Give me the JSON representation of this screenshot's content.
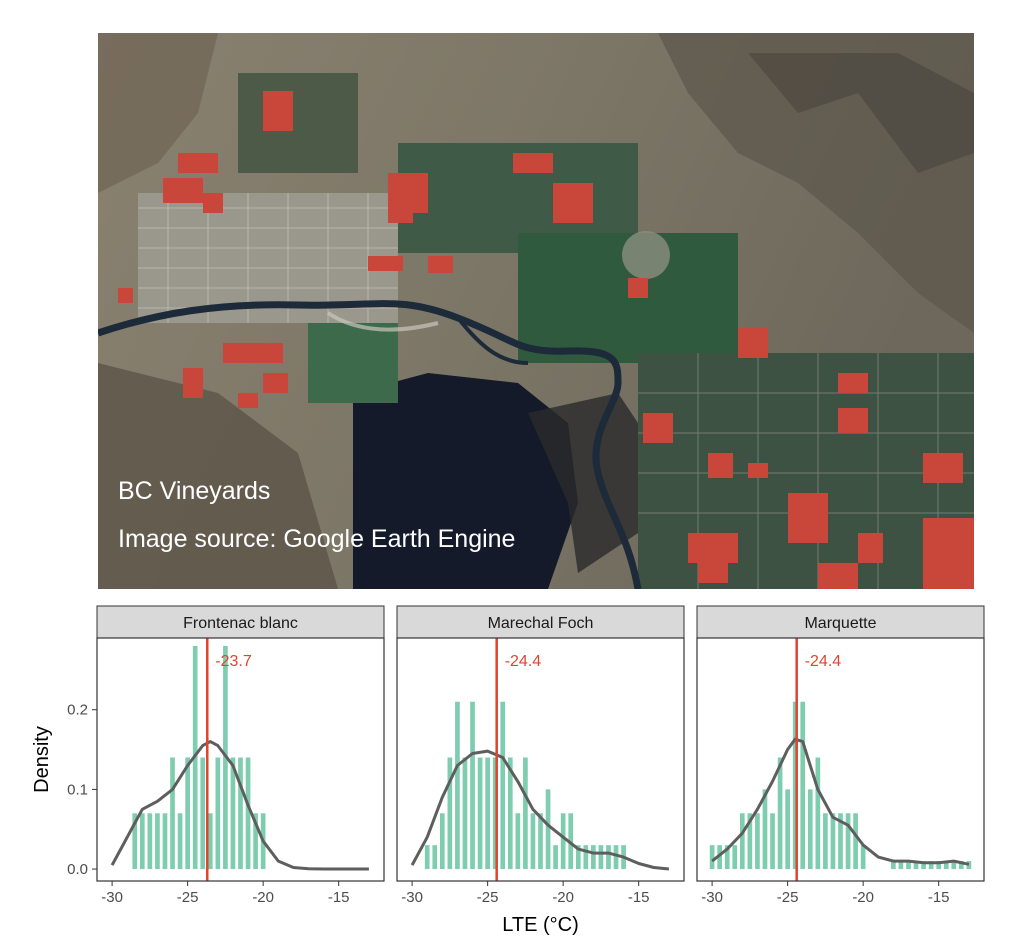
{
  "map": {
    "caption_title": "BC Vineyards",
    "caption_source": "Image source: Google Earth Engine",
    "vineyard_color": "#c8473a"
  },
  "chart_data": [
    {
      "type": "bar",
      "panel_title": "Frontenac blanc",
      "bins": [
        -28.5,
        -28,
        -27.5,
        -27,
        -26.5,
        -26,
        -25.5,
        -25,
        -24.5,
        -24,
        -23.5,
        -23,
        -22.5,
        -22,
        -21.5,
        -21,
        -20.5,
        -20
      ],
      "values": [
        0.07,
        0.07,
        0.07,
        0.07,
        0.07,
        0.14,
        0.07,
        0.14,
        0.28,
        0.14,
        0.07,
        0.14,
        0.28,
        0.14,
        0.14,
        0.14,
        0.07,
        0.07
      ],
      "density_curve": {
        "x": [
          -30,
          -29,
          -28,
          -27,
          -26,
          -25,
          -24,
          -23.5,
          -23,
          -22,
          -21,
          -20,
          -19,
          -18,
          -17,
          -16,
          -15,
          -14,
          -13
        ],
        "y": [
          0.005,
          0.04,
          0.075,
          0.085,
          0.1,
          0.13,
          0.155,
          0.16,
          0.155,
          0.13,
          0.08,
          0.035,
          0.01,
          0.002,
          0.0005,
          0.0001,
          0,
          0,
          0
        ]
      },
      "median": -23.7,
      "median_label": "-23.7"
    },
    {
      "type": "bar",
      "panel_title": "Marechal Foch",
      "bins": [
        -29,
        -28.5,
        -28,
        -27.5,
        -27,
        -26.5,
        -26,
        -25.5,
        -25,
        -24.5,
        -24,
        -23.5,
        -23,
        -22.5,
        -22,
        -21.5,
        -21,
        -20.5,
        -20,
        -19.5,
        -19,
        -18.5,
        -18,
        -17.5,
        -17,
        -16.5,
        -16
      ],
      "values": [
        0.03,
        0.03,
        0.07,
        0.14,
        0.21,
        0.14,
        0.21,
        0.14,
        0.14,
        0.14,
        0.21,
        0.14,
        0.07,
        0.14,
        0.07,
        0.07,
        0.1,
        0.03,
        0.07,
        0.07,
        0.03,
        0.03,
        0.03,
        0.03,
        0.03,
        0.03,
        0.03
      ],
      "density_curve": {
        "x": [
          -30,
          -29,
          -28,
          -27,
          -26,
          -25,
          -24,
          -23,
          -22,
          -21,
          -20,
          -19,
          -18,
          -17,
          -16,
          -15,
          -14,
          -13
        ],
        "y": [
          0.005,
          0.04,
          0.09,
          0.13,
          0.145,
          0.148,
          0.14,
          0.11,
          0.075,
          0.055,
          0.04,
          0.025,
          0.02,
          0.02,
          0.015,
          0.007,
          0.002,
          0
        ]
      },
      "median": -24.4,
      "median_label": "-24.4"
    },
    {
      "type": "bar",
      "panel_title": "Marquette",
      "bins": [
        -30,
        -29.5,
        -29,
        -28.5,
        -28,
        -27.5,
        -27,
        -26.5,
        -26,
        -25.5,
        -25,
        -24.5,
        -24,
        -23.5,
        -23,
        -22.5,
        -22,
        -21.5,
        -21,
        -20.5,
        -20,
        -18,
        -17.5,
        -17,
        -16.5,
        -16,
        -15.5,
        -15,
        -14.5,
        -14,
        -13.5,
        -13
      ],
      "values": [
        0.03,
        0.03,
        0.03,
        0.03,
        0.07,
        0.07,
        0.07,
        0.1,
        0.07,
        0.14,
        0.1,
        0.21,
        0.21,
        0.1,
        0.14,
        0.07,
        0.07,
        0.07,
        0.07,
        0.07,
        0.03,
        0.01,
        0.01,
        0.01,
        0.01,
        0.01,
        0.01,
        0.01,
        0.01,
        0.01,
        0.01,
        0.01
      ],
      "density_curve": {
        "x": [
          -30,
          -29,
          -28,
          -27,
          -26,
          -25,
          -24.5,
          -24,
          -23,
          -22,
          -21,
          -20,
          -19,
          -18,
          -17,
          -16,
          -15,
          -14,
          -13
        ],
        "y": [
          0.01,
          0.025,
          0.045,
          0.075,
          0.11,
          0.15,
          0.163,
          0.16,
          0.1,
          0.065,
          0.055,
          0.03,
          0.015,
          0.01,
          0.01,
          0.008,
          0.008,
          0.01,
          0.006
        ]
      },
      "median": -24.4,
      "median_label": "-24.4"
    }
  ],
  "axes": {
    "xlabel": "LTE (°C)",
    "ylabel": "Density",
    "xlim": [
      -31,
      -12
    ],
    "ylim": [
      -0.015,
      0.29
    ],
    "xticks": [
      -30,
      -25,
      -20,
      -15
    ],
    "xtick_labels": [
      "-30",
      "-25",
      "-20",
      "-15"
    ],
    "yticks": [
      0.0,
      0.1,
      0.2
    ],
    "ytick_labels": [
      "0.0",
      "0.1",
      "0.2"
    ]
  },
  "colors": {
    "bars": "#7fcdb0",
    "median_line": "#e0442f",
    "density_curve": "#5e5e5e",
    "strip_fill": "#d9d9d9"
  }
}
